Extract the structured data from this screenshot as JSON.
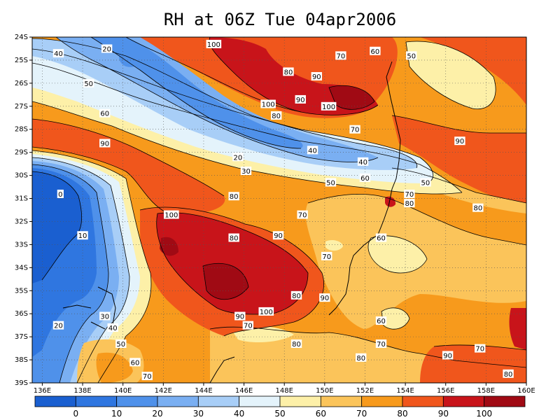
{
  "title": "RH at 06Z Tue 04apr2006",
  "colors": {
    "b0": "#1a5fd0",
    "b10": "#2f76e0",
    "b20": "#4f91ea",
    "b30": "#7aaff2",
    "b40": "#a8cef7",
    "b50": "#e4f3fb",
    "b60": "#fdf0a8",
    "b70": "#fbc45a",
    "b80": "#f79a1c",
    "b90": "#f0561c",
    "b100": "#c8141a",
    "b110": "#a00a14"
  },
  "chart_data": {
    "type": "heatmap",
    "variable": "RH",
    "time": "06Z Tue 04apr2006",
    "lon_range": [
      135.5,
      160
    ],
    "lat_range": [
      -39,
      -24
    ],
    "x_ticks": [
      "136E",
      "138E",
      "140E",
      "142E",
      "144E",
      "146E",
      "148E",
      "150E",
      "152E",
      "154E",
      "156E",
      "158E",
      "160E"
    ],
    "y_ticks": [
      "24S",
      "25S",
      "26S",
      "27S",
      "28S",
      "29S",
      "30S",
      "31S",
      "32S",
      "33S",
      "34S",
      "35S",
      "36S",
      "37S",
      "38S",
      "39S"
    ],
    "colorbar_labels": [
      "0",
      "10",
      "20",
      "30",
      "40",
      "50",
      "60",
      "70",
      "80",
      "90",
      "100"
    ],
    "colorbar_bins": 12,
    "grid": "dotted",
    "contour_labels": [
      {
        "text": "100",
        "lon": 144.5,
        "lat": -24.3
      },
      {
        "text": "20",
        "lon": 139.2,
        "lat": -24.5
      },
      {
        "text": "40",
        "lon": 136.8,
        "lat": -24.7
      },
      {
        "text": "70",
        "lon": 150.8,
        "lat": -24.8
      },
      {
        "text": "60",
        "lon": 152.5,
        "lat": -24.6
      },
      {
        "text": "50",
        "lon": 154.3,
        "lat": -24.8
      },
      {
        "text": "80",
        "lon": 148.2,
        "lat": -25.5
      },
      {
        "text": "90",
        "lon": 149.6,
        "lat": -25.7
      },
      {
        "text": "50",
        "lon": 138.3,
        "lat": -26.0
      },
      {
        "text": "100",
        "lon": 147.2,
        "lat": -26.9
      },
      {
        "text": "90",
        "lon": 148.8,
        "lat": -26.7
      },
      {
        "text": "80",
        "lon": 147.6,
        "lat": -27.4
      },
      {
        "text": "100",
        "lon": 150.2,
        "lat": -27.0
      },
      {
        "text": "60",
        "lon": 139.1,
        "lat": -27.3
      },
      {
        "text": "70",
        "lon": 151.5,
        "lat": -28.0
      },
      {
        "text": "90",
        "lon": 139.1,
        "lat": -28.6
      },
      {
        "text": "90",
        "lon": 156.7,
        "lat": -28.5
      },
      {
        "text": "20",
        "lon": 145.7,
        "lat": -29.2
      },
      {
        "text": "40",
        "lon": 149.4,
        "lat": -28.9
      },
      {
        "text": "40",
        "lon": 151.9,
        "lat": -29.4
      },
      {
        "text": "30",
        "lon": 146.1,
        "lat": -29.8
      },
      {
        "text": "60",
        "lon": 152.0,
        "lat": -30.1
      },
      {
        "text": "50",
        "lon": 150.3,
        "lat": -30.3
      },
      {
        "text": "50",
        "lon": 155.0,
        "lat": -30.3
      },
      {
        "text": "0",
        "lon": 136.9,
        "lat": -30.8
      },
      {
        "text": "70",
        "lon": 154.2,
        "lat": -30.8
      },
      {
        "text": "80",
        "lon": 145.5,
        "lat": -30.9
      },
      {
        "text": "80",
        "lon": 154.2,
        "lat": -31.2
      },
      {
        "text": "80",
        "lon": 157.6,
        "lat": -31.4
      },
      {
        "text": "100",
        "lon": 142.4,
        "lat": -31.7
      },
      {
        "text": "70",
        "lon": 148.9,
        "lat": -31.7
      },
      {
        "text": "10",
        "lon": 138.0,
        "lat": -32.6
      },
      {
        "text": "80",
        "lon": 145.5,
        "lat": -32.7
      },
      {
        "text": "90",
        "lon": 147.7,
        "lat": -32.6
      },
      {
        "text": "60",
        "lon": 152.8,
        "lat": -32.7
      },
      {
        "text": "70",
        "lon": 150.1,
        "lat": -33.5
      },
      {
        "text": "80",
        "lon": 148.6,
        "lat": -35.2
      },
      {
        "text": "90",
        "lon": 150.0,
        "lat": -35.3
      },
      {
        "text": "100",
        "lon": 147.1,
        "lat": -35.9
      },
      {
        "text": "90",
        "lon": 145.8,
        "lat": -36.1
      },
      {
        "text": "30",
        "lon": 139.1,
        "lat": -36.1
      },
      {
        "text": "60",
        "lon": 152.8,
        "lat": -36.3
      },
      {
        "text": "20",
        "lon": 136.8,
        "lat": -36.5
      },
      {
        "text": "70",
        "lon": 146.2,
        "lat": -36.5
      },
      {
        "text": "40",
        "lon": 139.5,
        "lat": -36.6
      },
      {
        "text": "50",
        "lon": 139.9,
        "lat": -37.3
      },
      {
        "text": "80",
        "lon": 148.6,
        "lat": -37.3
      },
      {
        "text": "70",
        "lon": 152.8,
        "lat": -37.3
      },
      {
        "text": "70",
        "lon": 157.7,
        "lat": -37.5
      },
      {
        "text": "60",
        "lon": 140.6,
        "lat": -38.1
      },
      {
        "text": "80",
        "lon": 151.8,
        "lat": -37.9
      },
      {
        "text": "90",
        "lon": 156.1,
        "lat": -37.8
      },
      {
        "text": "70",
        "lon": 141.2,
        "lat": -38.7
      },
      {
        "text": "80",
        "lon": 159.1,
        "lat": -38.6
      }
    ]
  }
}
